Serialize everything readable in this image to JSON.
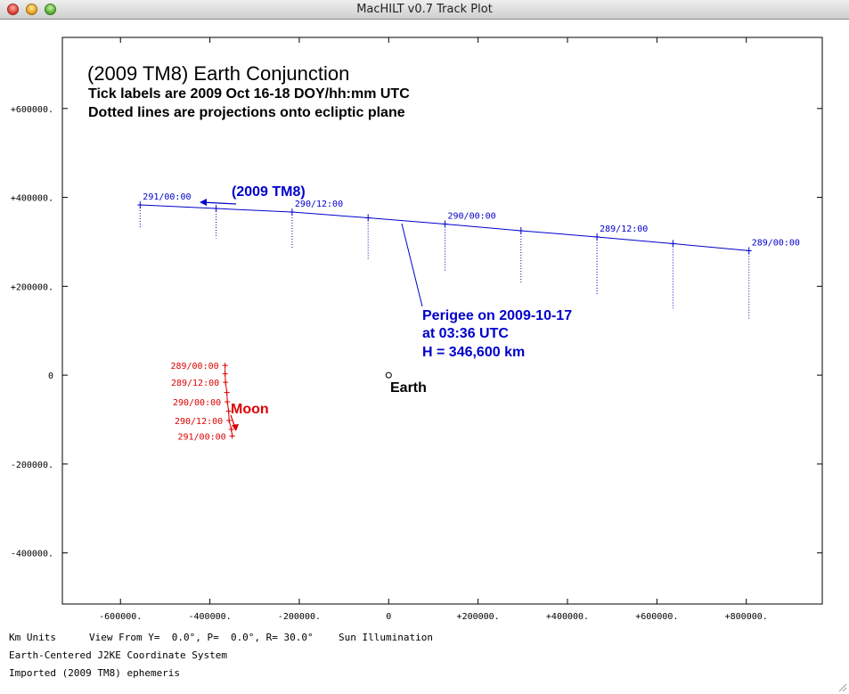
{
  "window": {
    "title": "MacHILT v0.7 Track Plot"
  },
  "plot": {
    "title": "(2009 TM8) Earth Conjunction",
    "subtitle1": "Tick labels are 2009 Oct 16-18 DOY/hh:mm UTC",
    "subtitle2": "Dotted lines are projections onto ecliptic plane",
    "object_label": "(2009 TM8)",
    "perigee_line1": "Perigee on 2009-10-17",
    "perigee_line2": "at 03:36 UTC",
    "perigee_line3": "H = 346,600 km",
    "earth_label": "Earth",
    "moon_label": "Moon",
    "colors": {
      "asteroid": "#0000cc",
      "moon": "#dd0000",
      "text": "#000000"
    }
  },
  "chart_data": {
    "type": "line",
    "xlim": [
      -730000,
      970000
    ],
    "ylim": [
      -515000,
      760000
    ],
    "x_ticks": [
      {
        "value": -600000,
        "label": "-600000."
      },
      {
        "value": -400000,
        "label": "-400000."
      },
      {
        "value": -200000,
        "label": "-200000."
      },
      {
        "value": 0,
        "label": "0"
      },
      {
        "value": 200000,
        "label": "+200000."
      },
      {
        "value": 400000,
        "label": "+400000."
      },
      {
        "value": 600000,
        "label": "+600000."
      },
      {
        "value": 800000,
        "label": "+800000."
      }
    ],
    "y_ticks": [
      {
        "value": 600000,
        "label": "+600000."
      },
      {
        "value": 400000,
        "label": "+400000."
      },
      {
        "value": 200000,
        "label": "+200000."
      },
      {
        "value": 0,
        "label": "0"
      },
      {
        "value": -200000,
        "label": "-200000."
      },
      {
        "value": -400000,
        "label": "-400000."
      }
    ],
    "series": [
      {
        "name": "(2009 TM8)",
        "color": "#0000cc",
        "points": [
          {
            "x": 806000,
            "y": 280000,
            "label": "289/00:00",
            "drop_y": 125000
          },
          {
            "x": 636000,
            "y": 296000,
            "label": "",
            "drop_y": 150000
          },
          {
            "x": 466000,
            "y": 311000,
            "label": "289/12:00",
            "drop_y": 180000
          },
          {
            "x": 296000,
            "y": 325000,
            "label": "",
            "drop_y": 205000
          },
          {
            "x": 126000,
            "y": 340000,
            "label": "290/00:00",
            "drop_y": 235000
          },
          {
            "x": -46000,
            "y": 354000,
            "label": "",
            "drop_y": 260000
          },
          {
            "x": -216000,
            "y": 367000,
            "label": "290/12:00",
            "drop_y": 283000
          },
          {
            "x": -386000,
            "y": 375000,
            "label": "",
            "drop_y": 308000
          },
          {
            "x": -556000,
            "y": 383000,
            "label": "291/00:00",
            "drop_y": 332000
          }
        ]
      },
      {
        "name": "Moon",
        "color": "#dd0000",
        "points": [
          {
            "x": -366000,
            "y": 22000,
            "label": "289/00:00"
          },
          {
            "x": -366000,
            "y": 3000,
            "label": ""
          },
          {
            "x": -365000,
            "y": -16000,
            "label": "289/12:00"
          },
          {
            "x": -362000,
            "y": -39000,
            "label": ""
          },
          {
            "x": -361000,
            "y": -60000,
            "label": "290/00:00"
          },
          {
            "x": -358000,
            "y": -81000,
            "label": ""
          },
          {
            "x": -357000,
            "y": -102000,
            "label": "290/12:00"
          },
          {
            "x": -352000,
            "y": -122000,
            "label": ""
          },
          {
            "x": -350000,
            "y": -137000,
            "label": "291/00:00"
          }
        ]
      }
    ],
    "earth": {
      "x": 0,
      "y": 0
    },
    "perigee": {
      "x": 30000,
      "y": 345000
    },
    "grid": false
  },
  "footer": {
    "units": "Km Units",
    "view": "View From Y=  0.0°, P=  0.0°, R= 30.0°",
    "illumination": "Sun Illumination",
    "coords": "Earth-Centered J2KE Coordinate System",
    "source": "Imported (2009 TM8) ephemeris"
  }
}
